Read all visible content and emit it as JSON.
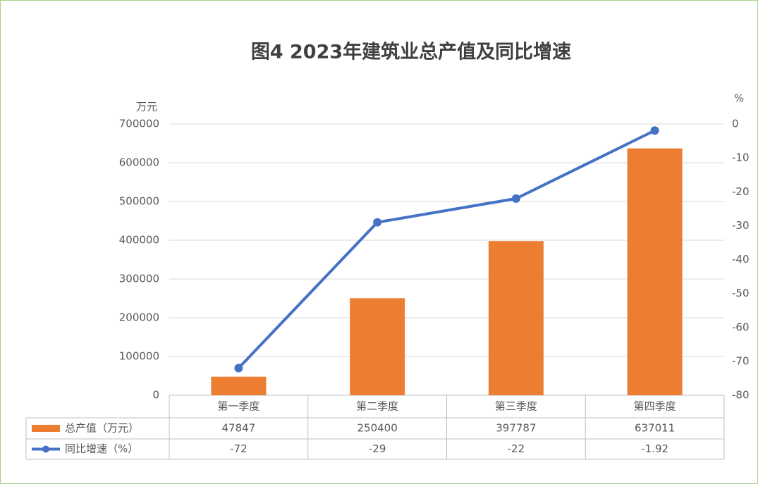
{
  "chart_data": {
    "type": "bar",
    "title": "图4  2023年建筑业总产值及同比增速",
    "y_label": "万元",
    "y2_label": "%",
    "categories": [
      "第一季度",
      "第二季度",
      "第三季度",
      "第四季度"
    ],
    "series": [
      {
        "name": "总产值（万元）",
        "type": "bar",
        "color": "#ed7d31",
        "values": [
          47847,
          250400,
          397787,
          637011
        ]
      },
      {
        "name": "同比增速（%）",
        "type": "line",
        "axis": "y2",
        "color": "#4472c4",
        "values": [
          -72,
          -29,
          -22,
          -1.92
        ]
      }
    ],
    "ylim": [
      0,
      700000
    ],
    "yticks": [
      0,
      100000,
      200000,
      300000,
      400000,
      500000,
      600000,
      700000
    ],
    "y2lim": [
      -80,
      0
    ],
    "y2ticks": [
      -80,
      -70,
      -60,
      -50,
      -40,
      -30,
      -20,
      -10,
      0
    ],
    "grid": true,
    "data_table": true
  }
}
